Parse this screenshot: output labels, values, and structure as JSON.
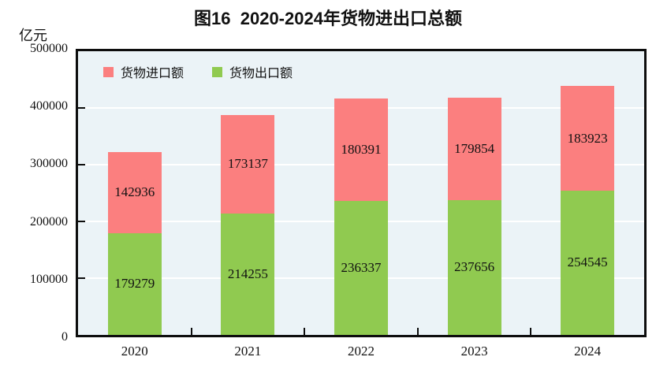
{
  "header": {
    "title": "图16  2020-2024年货物进出口总额"
  },
  "y_axis": {
    "unit": "亿元",
    "ticks": [
      500000,
      400000,
      300000,
      200000,
      100000,
      0
    ]
  },
  "legend": {
    "items": [
      {
        "label": "货物进口额",
        "color": "#FB7F7F"
      },
      {
        "label": "货物出口额",
        "color": "#90CA50"
      }
    ]
  },
  "colors": {
    "import_bar": "#FB7F7F",
    "export_bar": "#90CA50",
    "plot_background": "#EBF3F7",
    "gridline": "#FFFFFF",
    "axis": "#0d0d0d",
    "text": "#111111"
  },
  "chart_data": {
    "type": "bar",
    "stacked": true,
    "title": "图16  2020-2024年货物进出口总额",
    "ylabel": "亿元",
    "ylim": [
      0,
      500000
    ],
    "y_tick_step": 100000,
    "grid": true,
    "legend_position": "top-left-inside",
    "categories": [
      "2020",
      "2021",
      "2022",
      "2023",
      "2024"
    ],
    "series": [
      {
        "name": "货物出口额",
        "color": "#90CA50",
        "values": [
          179279,
          214255,
          236337,
          237656,
          254545
        ]
      },
      {
        "name": "货物进口额",
        "color": "#FB7F7F",
        "values": [
          142936,
          173137,
          180391,
          179854,
          183923
        ]
      }
    ],
    "totals": [
      322215,
      387392,
      416728,
      417510,
      438468
    ]
  }
}
